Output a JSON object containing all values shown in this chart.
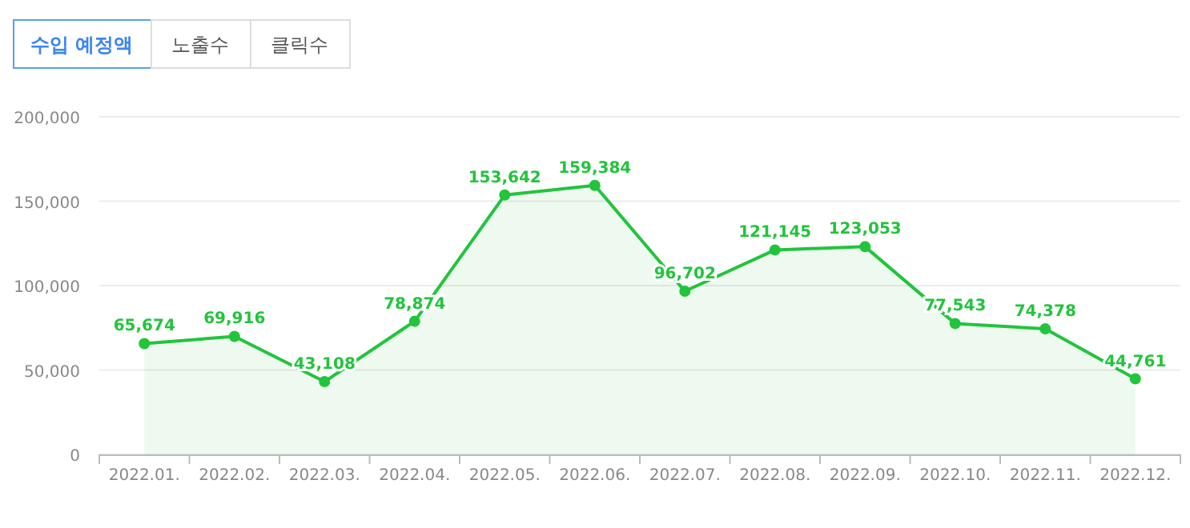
{
  "chart_data": {
    "type": "area",
    "annotations": [
      "수입 예정액",
      "노출수",
      "클릭수"
    ],
    "categories": [
      "2022.01.",
      "2022.02.",
      "2022.03.",
      "2022.04.",
      "2022.05.",
      "2022.06.",
      "2022.07.",
      "2022.08.",
      "2022.09.",
      "2022.10.",
      "2022.11.",
      "2022.12."
    ],
    "series": [
      {
        "color": "#22c43c",
        "values": [
          65674,
          69916,
          43108,
          78874,
          153642,
          159384,
          96702,
          121145,
          123053,
          77543,
          74378,
          44761
        ],
        "value_labels": [
          "65,674",
          "69,916",
          "43,108",
          "78,874",
          "153,642",
          "159,384",
          "96,702",
          "121,145",
          "123,053",
          "77,543",
          "74,378",
          "44,761"
        ]
      }
    ],
    "ylim": [
      0,
      200000
    ],
    "yticks": [
      {
        "value": 0,
        "label": "0"
      },
      {
        "value": 50000,
        "label": "50,000"
      },
      {
        "value": 100000,
        "label": "100,000"
      },
      {
        "value": 150000,
        "label": "150,000"
      },
      {
        "value": 200000,
        "label": "200,000"
      }
    ],
    "grid": "y",
    "marker": "circle"
  }
}
